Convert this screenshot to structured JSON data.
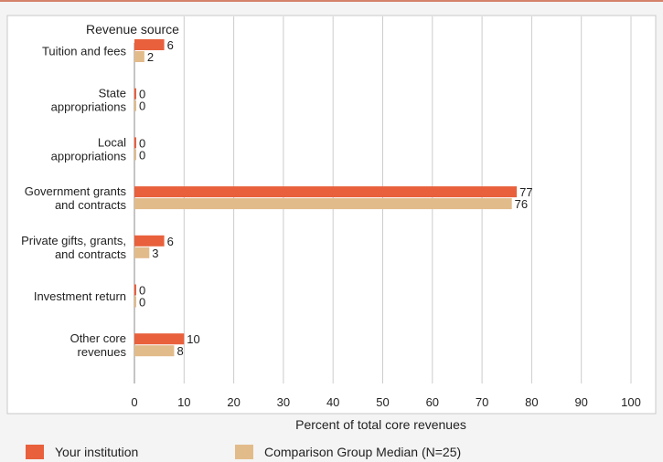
{
  "chart_data": {
    "type": "bar",
    "orientation": "horizontal",
    "title": "",
    "category_axis_title": "Revenue source",
    "xlabel": "Percent of total core revenues",
    "xlim": [
      0,
      100
    ],
    "xticks": [
      0,
      10,
      20,
      30,
      40,
      50,
      60,
      70,
      80,
      90,
      100
    ],
    "grid": "vertical",
    "legend_position": "bottom",
    "categories": [
      [
        "Tuition and fees"
      ],
      [
        "State",
        "appropriations"
      ],
      [
        "Local",
        "appropriations"
      ],
      [
        "Government grants",
        "and contracts"
      ],
      [
        "Private gifts, grants,",
        "and contracts"
      ],
      [
        "Investment return"
      ],
      [
        "Other core",
        "revenues"
      ]
    ],
    "series": [
      {
        "name": "Your institution",
        "color": "#e8603c",
        "values": [
          6,
          0,
          0,
          77,
          6,
          0,
          10
        ]
      },
      {
        "name": "Comparison Group Median (N=25)",
        "color": "#e2bb8a",
        "values": [
          2,
          0,
          0,
          76,
          3,
          0,
          8
        ]
      }
    ]
  }
}
